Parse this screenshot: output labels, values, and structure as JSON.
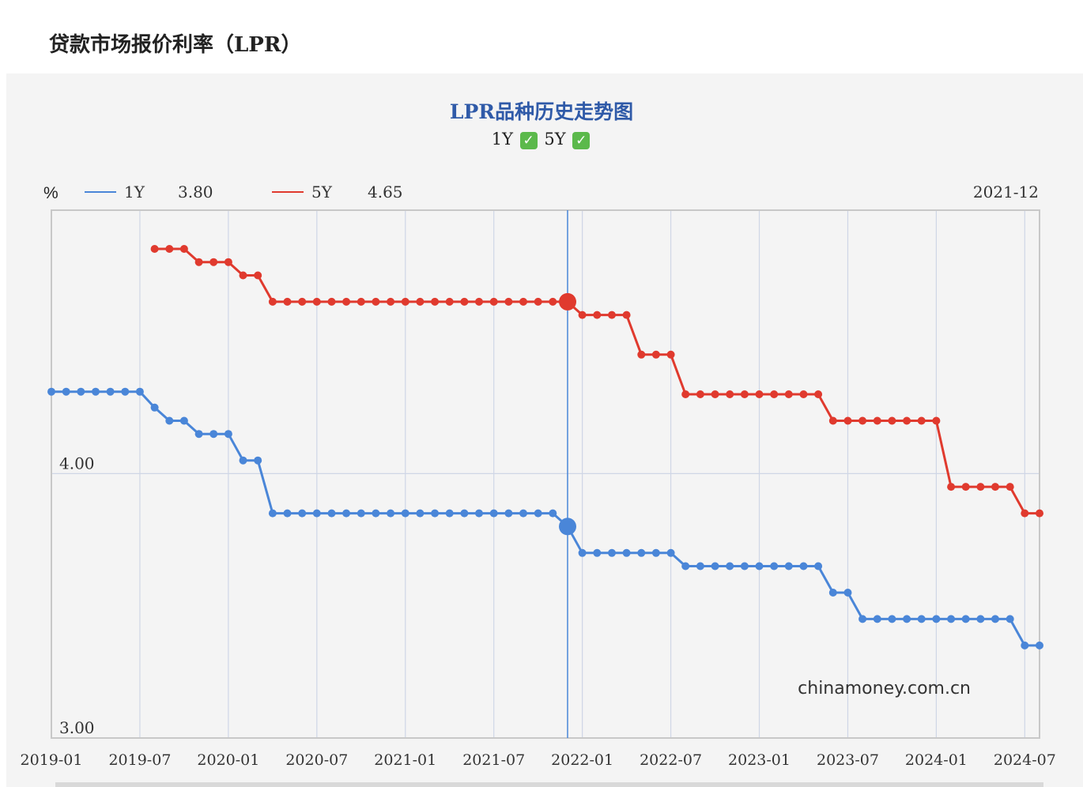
{
  "page_title": "贷款市场报价利率（LPR）",
  "chart_title": "LPR品种历史走势图",
  "toggles": [
    {
      "label": "1Y",
      "checked": true
    },
    {
      "label": "5Y",
      "checked": true
    }
  ],
  "check_glyph": "✓",
  "colors": {
    "1Y": "#4a86d8",
    "5Y": "#e03a2e",
    "title": "#2f5aa8",
    "crosshair": "#4a86d8"
  },
  "watermark": "chinamoney.com.cn",
  "chart_data": {
    "type": "line",
    "ylabel": "%",
    "ylim": [
      3.0,
      4.85
    ],
    "y_ticks": [
      {
        "value": 4.0,
        "label": "4.00"
      },
      {
        "value": 3.0,
        "label": "3.00"
      }
    ],
    "x_tick_labels": [
      "2019-01",
      "2019-07",
      "2020-01",
      "2020-07",
      "2021-01",
      "2021-07",
      "2022-01",
      "2022-07",
      "2023-01",
      "2023-07",
      "2024-01",
      "2024-07"
    ],
    "grid": true,
    "legend_position": "top-left",
    "hover": {
      "date": "2021-12",
      "1Y": "3.80",
      "5Y": "4.65"
    },
    "series": [
      {
        "name": "1Y",
        "color": "#4a86d8",
        "points": [
          [
            "2019-01",
            4.31
          ],
          [
            "2019-02",
            4.31
          ],
          [
            "2019-03",
            4.31
          ],
          [
            "2019-04",
            4.31
          ],
          [
            "2019-05",
            4.31
          ],
          [
            "2019-06",
            4.31
          ],
          [
            "2019-07",
            4.31
          ],
          [
            "2019-08",
            4.25
          ],
          [
            "2019-09",
            4.2
          ],
          [
            "2019-10",
            4.2
          ],
          [
            "2019-11",
            4.15
          ],
          [
            "2019-12",
            4.15
          ],
          [
            "2020-01",
            4.15
          ],
          [
            "2020-02",
            4.05
          ],
          [
            "2020-03",
            4.05
          ],
          [
            "2020-04",
            3.85
          ],
          [
            "2020-05",
            3.85
          ],
          [
            "2020-06",
            3.85
          ],
          [
            "2020-07",
            3.85
          ],
          [
            "2020-08",
            3.85
          ],
          [
            "2020-09",
            3.85
          ],
          [
            "2020-10",
            3.85
          ],
          [
            "2020-11",
            3.85
          ],
          [
            "2020-12",
            3.85
          ],
          [
            "2021-01",
            3.85
          ],
          [
            "2021-02",
            3.85
          ],
          [
            "2021-03",
            3.85
          ],
          [
            "2021-04",
            3.85
          ],
          [
            "2021-05",
            3.85
          ],
          [
            "2021-06",
            3.85
          ],
          [
            "2021-07",
            3.85
          ],
          [
            "2021-08",
            3.85
          ],
          [
            "2021-09",
            3.85
          ],
          [
            "2021-10",
            3.85
          ],
          [
            "2021-11",
            3.85
          ],
          [
            "2021-12",
            3.8
          ],
          [
            "2022-01",
            3.7
          ],
          [
            "2022-02",
            3.7
          ],
          [
            "2022-03",
            3.7
          ],
          [
            "2022-04",
            3.7
          ],
          [
            "2022-05",
            3.7
          ],
          [
            "2022-06",
            3.7
          ],
          [
            "2022-07",
            3.7
          ],
          [
            "2022-08",
            3.65
          ],
          [
            "2022-09",
            3.65
          ],
          [
            "2022-10",
            3.65
          ],
          [
            "2022-11",
            3.65
          ],
          [
            "2022-12",
            3.65
          ],
          [
            "2023-01",
            3.65
          ],
          [
            "2023-02",
            3.65
          ],
          [
            "2023-03",
            3.65
          ],
          [
            "2023-04",
            3.65
          ],
          [
            "2023-05",
            3.65
          ],
          [
            "2023-06",
            3.55
          ],
          [
            "2023-07",
            3.55
          ],
          [
            "2023-08",
            3.45
          ],
          [
            "2023-09",
            3.45
          ],
          [
            "2023-10",
            3.45
          ],
          [
            "2023-11",
            3.45
          ],
          [
            "2023-12",
            3.45
          ],
          [
            "2024-01",
            3.45
          ],
          [
            "2024-02",
            3.45
          ],
          [
            "2024-03",
            3.45
          ],
          [
            "2024-04",
            3.45
          ],
          [
            "2024-05",
            3.45
          ],
          [
            "2024-06",
            3.45
          ],
          [
            "2024-07",
            3.35
          ],
          [
            "2024-08",
            3.35
          ]
        ]
      },
      {
        "name": "5Y",
        "color": "#e03a2e",
        "points": [
          [
            "2019-08",
            4.85
          ],
          [
            "2019-09",
            4.85
          ],
          [
            "2019-10",
            4.85
          ],
          [
            "2019-11",
            4.8
          ],
          [
            "2019-12",
            4.8
          ],
          [
            "2020-01",
            4.8
          ],
          [
            "2020-02",
            4.75
          ],
          [
            "2020-03",
            4.75
          ],
          [
            "2020-04",
            4.65
          ],
          [
            "2020-05",
            4.65
          ],
          [
            "2020-06",
            4.65
          ],
          [
            "2020-07",
            4.65
          ],
          [
            "2020-08",
            4.65
          ],
          [
            "2020-09",
            4.65
          ],
          [
            "2020-10",
            4.65
          ],
          [
            "2020-11",
            4.65
          ],
          [
            "2020-12",
            4.65
          ],
          [
            "2021-01",
            4.65
          ],
          [
            "2021-02",
            4.65
          ],
          [
            "2021-03",
            4.65
          ],
          [
            "2021-04",
            4.65
          ],
          [
            "2021-05",
            4.65
          ],
          [
            "2021-06",
            4.65
          ],
          [
            "2021-07",
            4.65
          ],
          [
            "2021-08",
            4.65
          ],
          [
            "2021-09",
            4.65
          ],
          [
            "2021-10",
            4.65
          ],
          [
            "2021-11",
            4.65
          ],
          [
            "2021-12",
            4.65
          ],
          [
            "2022-01",
            4.6
          ],
          [
            "2022-02",
            4.6
          ],
          [
            "2022-03",
            4.6
          ],
          [
            "2022-04",
            4.6
          ],
          [
            "2022-05",
            4.45
          ],
          [
            "2022-06",
            4.45
          ],
          [
            "2022-07",
            4.45
          ],
          [
            "2022-08",
            4.3
          ],
          [
            "2022-09",
            4.3
          ],
          [
            "2022-10",
            4.3
          ],
          [
            "2022-11",
            4.3
          ],
          [
            "2022-12",
            4.3
          ],
          [
            "2023-01",
            4.3
          ],
          [
            "2023-02",
            4.3
          ],
          [
            "2023-03",
            4.3
          ],
          [
            "2023-04",
            4.3
          ],
          [
            "2023-05",
            4.3
          ],
          [
            "2023-06",
            4.2
          ],
          [
            "2023-07",
            4.2
          ],
          [
            "2023-08",
            4.2
          ],
          [
            "2023-09",
            4.2
          ],
          [
            "2023-10",
            4.2
          ],
          [
            "2023-11",
            4.2
          ],
          [
            "2023-12",
            4.2
          ],
          [
            "2024-01",
            4.2
          ],
          [
            "2024-02",
            3.95
          ],
          [
            "2024-03",
            3.95
          ],
          [
            "2024-04",
            3.95
          ],
          [
            "2024-05",
            3.95
          ],
          [
            "2024-06",
            3.95
          ],
          [
            "2024-07",
            3.85
          ],
          [
            "2024-08",
            3.85
          ]
        ]
      }
    ]
  }
}
